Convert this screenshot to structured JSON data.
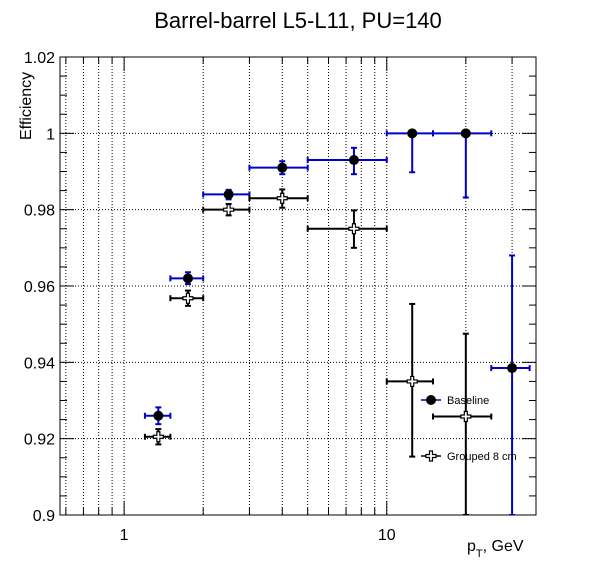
{
  "chart_data": {
    "type": "scatter",
    "title": "Barrel-barrel L5-L11, PU=140",
    "xlabel": "p",
    "xlabel_sub": "T",
    "xlabel_unit": ", GeV",
    "ylabel": "Efficiency",
    "x_scale": "log",
    "xlim": [
      0.57,
      37
    ],
    "ylim": [
      0.9,
      1.02
    ],
    "x_ticks": [
      {
        "value": 1,
        "label": "1"
      },
      {
        "value": 10,
        "label": "10"
      }
    ],
    "y_ticks": [
      {
        "value": 0.9,
        "label": "0.9"
      },
      {
        "value": 0.92,
        "label": "0.92"
      },
      {
        "value": 0.94,
        "label": "0.94"
      },
      {
        "value": 0.96,
        "label": "0.96"
      },
      {
        "value": 0.98,
        "label": "0.98"
      },
      {
        "value": 1.0,
        "label": "1"
      },
      {
        "value": 1.02,
        "label": "1.02"
      }
    ],
    "grid": true,
    "legend_position": "right",
    "series": [
      {
        "name": "Baseline",
        "color": "#0000cc",
        "marker": "filled-circle",
        "points": [
          {
            "x": 1.35,
            "xlo": 1.2,
            "xhi": 1.5,
            "y": 0.926,
            "ylo": 0.9238,
            "yhi": 0.9282
          },
          {
            "x": 1.75,
            "xlo": 1.5,
            "xhi": 2.0,
            "y": 0.962,
            "ylo": 0.9605,
            "yhi": 0.9636
          },
          {
            "x": 2.5,
            "xlo": 2.0,
            "xhi": 3.0,
            "y": 0.984,
            "ylo": 0.9827,
            "yhi": 0.9852
          },
          {
            "x": 4.0,
            "xlo": 3.0,
            "xhi": 5.0,
            "y": 0.991,
            "ylo": 0.9893,
            "yhi": 0.9927
          },
          {
            "x": 7.5,
            "xlo": 5.0,
            "xhi": 10.0,
            "y": 0.993,
            "ylo": 0.9893,
            "yhi": 0.9962
          },
          {
            "x": 12.5,
            "xlo": 10.0,
            "xhi": 15.0,
            "y": 1.0,
            "ylo": 0.9898,
            "yhi": 1.0
          },
          {
            "x": 20.0,
            "xlo": 15.0,
            "xhi": 25.0,
            "y": 1.0,
            "ylo": 0.9832,
            "yhi": 1.0
          },
          {
            "x": 30.0,
            "xlo": 25.0,
            "xhi": 35.0,
            "y": 0.9385,
            "ylo": 0.9,
            "yhi": 0.968
          }
        ]
      },
      {
        "name": "Grouped 8 cm",
        "color": "#000000",
        "marker": "open-cross",
        "points": [
          {
            "x": 1.35,
            "xlo": 1.2,
            "xhi": 1.5,
            "y": 0.9205,
            "ylo": 0.9185,
            "yhi": 0.9225
          },
          {
            "x": 1.75,
            "xlo": 1.5,
            "xhi": 2.0,
            "y": 0.9568,
            "ylo": 0.9548,
            "yhi": 0.9588
          },
          {
            "x": 2.5,
            "xlo": 2.0,
            "xhi": 3.0,
            "y": 0.98,
            "ylo": 0.9785,
            "yhi": 0.9815
          },
          {
            "x": 4.0,
            "xlo": 3.0,
            "xhi": 5.0,
            "y": 0.983,
            "ylo": 0.9805,
            "yhi": 0.9853
          },
          {
            "x": 7.5,
            "xlo": 5.0,
            "xhi": 10.0,
            "y": 0.975,
            "ylo": 0.97,
            "yhi": 0.9798
          },
          {
            "x": 12.5,
            "xlo": 10.0,
            "xhi": 15.0,
            "y": 0.935,
            "ylo": 0.9153,
            "yhi": 0.9553
          },
          {
            "x": 20.0,
            "xlo": 15.0,
            "xhi": 25.0,
            "y": 0.9258,
            "ylo": 0.9,
            "yhi": 0.9475
          }
        ]
      }
    ]
  }
}
